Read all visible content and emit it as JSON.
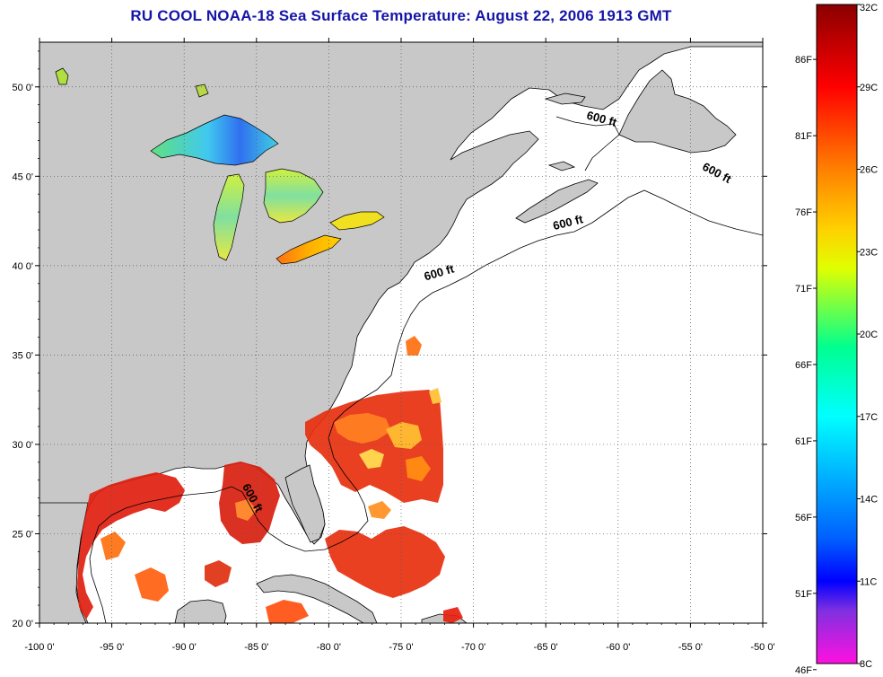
{
  "title": "RU COOL  NOAA-18  Sea Surface Temperature:  August 22, 2006 1913 GMT",
  "map": {
    "lon_range": [
      -100,
      -50
    ],
    "lat_range": [
      20,
      52.5
    ],
    "lon_ticks": [
      -100,
      -95,
      -90,
      -85,
      -80,
      -75,
      -70,
      -65,
      -60,
      -55,
      -50
    ],
    "lon_tick_labels": [
      "-100 0'",
      "-95 0'",
      "-90 0'",
      "-85 0'",
      "-80 0'",
      "-75 0'",
      "-70 0'",
      "-65 0'",
      "-60 0'",
      "-55 0'",
      "-50 0'"
    ],
    "lat_ticks": [
      20,
      25,
      30,
      35,
      40,
      45,
      50
    ],
    "lat_tick_labels": [
      "20 0'",
      "25 0'",
      "30 0'",
      "35 0'",
      "40 0'",
      "45 0'",
      "50 0'"
    ],
    "grid": "dotted",
    "land_color": "#c8c8c8",
    "ocean_color": "#ffffff"
  },
  "contour_labels": [
    {
      "text": "600 ft",
      "lon": -61.2,
      "lat": 48.0,
      "rotate": 15
    },
    {
      "text": "600 ft",
      "lon": -53.3,
      "lat": 45.0,
      "rotate": 28
    },
    {
      "text": "600 ft",
      "lon": -63.4,
      "lat": 42.2,
      "rotate": -14
    },
    {
      "text": "600 ft",
      "lon": -72.3,
      "lat": 39.4,
      "rotate": -16
    },
    {
      "text": "600 ft",
      "lon": -85.5,
      "lat": 26.9,
      "rotate": 62
    }
  ],
  "colorbar": {
    "celsius_labels": [
      "8C",
      "11C",
      "14C",
      "17C",
      "20C",
      "23C",
      "26C",
      "29C",
      "32C"
    ],
    "celsius_values": [
      8,
      11,
      14,
      17,
      20,
      23,
      26,
      29,
      32
    ],
    "fahrenheit_labels": [
      "46F",
      "51F",
      "56F",
      "61F",
      "66F",
      "71F",
      "76F",
      "81F",
      "86F"
    ],
    "fahrenheit_values": [
      46,
      51,
      56,
      61,
      66,
      71,
      76,
      81,
      86
    ],
    "range_c": [
      8,
      32
    ],
    "colors": [
      "#ff10e0",
      "#8030e0",
      "#0000ff",
      "#0080ff",
      "#00ffff",
      "#00ff80",
      "#ffff00",
      "#ff9000",
      "#ff0000",
      "#8a0000"
    ]
  }
}
